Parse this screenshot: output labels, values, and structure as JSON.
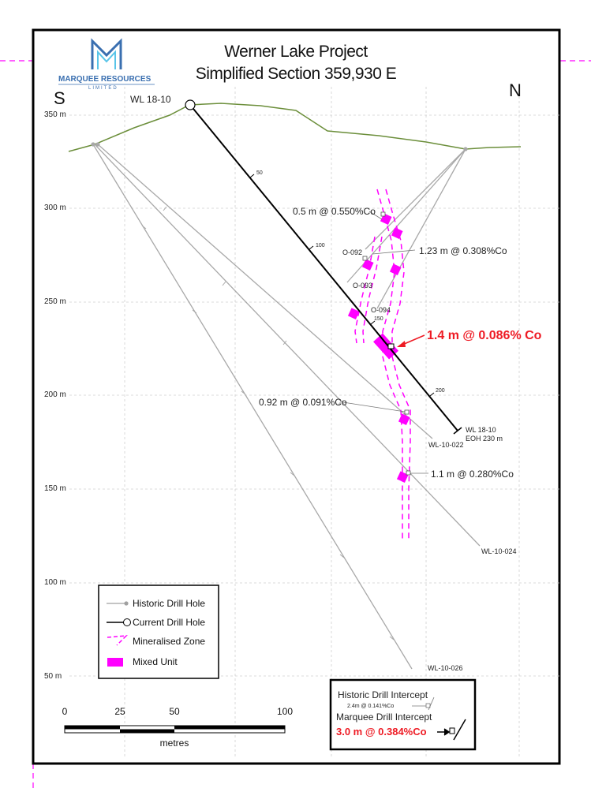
{
  "title": {
    "line1": "Werner Lake Project",
    "line2": "Simplified Section 359,930 E"
  },
  "logo": {
    "name": "MARQUEE RESOURCES",
    "sub": "LIMITED",
    "icon": "m-logo-icon",
    "color": "#3a6fb0"
  },
  "directions": {
    "south": "S",
    "north": "N"
  },
  "elevations": [
    "350 m",
    "300 m",
    "250 m",
    "200 m",
    "150 m",
    "100 m",
    "50 m"
  ],
  "collar_labels": {
    "current": "WL 18-10"
  },
  "depth_ticks": [
    "50",
    "100",
    "150",
    "200"
  ],
  "hole_labels": {
    "o092": "O-092",
    "o093": "O-093",
    "o094": "O-094",
    "wl10022": "WL-10-022",
    "wl10024": "WL-10-024",
    "wl10026": "WL-10-026",
    "eoh_line1": "WL 18-10",
    "eoh_line2": "EOH 230 m"
  },
  "intercepts": {
    "i1": "0.5 m @ 0.550%Co",
    "i2": "1.23 m @ 0.308%Co",
    "i3": "1.4 m @ 0.086% Co",
    "i4": "0.92 m @ 0.091%Co",
    "i5": "1.1 m @ 0.280%Co"
  },
  "legend": {
    "historic": "Historic Drill Hole",
    "current": "Current Drill Hole",
    "zone": "Mineralised Zone",
    "mixed": "Mixed Unit"
  },
  "intercept_key": {
    "historic_title": "Historic Drill Intercept",
    "historic_example": "2.4m @ 0.141%Co",
    "marquee_title": "Marquee Drill Intercept",
    "marquee_example": "3.0 m @ 0.384%Co"
  },
  "scale": {
    "ticks": [
      "0",
      "25",
      "50",
      "100"
    ],
    "unit": "metres"
  },
  "colors": {
    "topography": "#6b8e3a",
    "historic": "#a0a0a0",
    "current": "#000000",
    "zone": "#ff00ff",
    "highlight": "#ee1b24"
  }
}
